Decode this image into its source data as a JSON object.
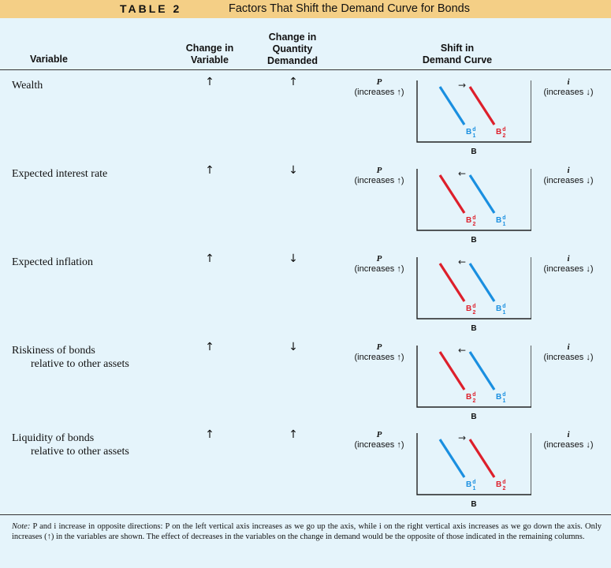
{
  "title": {
    "label": "TABLE 2",
    "text": "Factors That Shift the Demand Curve for Bonds"
  },
  "headers": {
    "variable": "Variable",
    "change_in_variable": [
      "Change in",
      "Variable"
    ],
    "change_in_quantity": [
      "Change in",
      "Quantity",
      "Demanded"
    ],
    "shift": [
      "Shift in",
      "Demand Curve"
    ]
  },
  "axis": {
    "left_symbol": "P",
    "left_text": "(increases ↑)",
    "right_symbol": "i",
    "right_text": "(increases ↓)",
    "x_label": "B"
  },
  "colors": {
    "b1": "#1a8fe0",
    "b2": "#dd1f2b",
    "title_bg": "#f4cf86",
    "page_bg": "#e5f4fb"
  },
  "rows": [
    {
      "variable": [
        "Wealth"
      ],
      "change_variable": "↑",
      "change_quantity": "↑",
      "shift_arrow": "→",
      "shift": "right"
    },
    {
      "variable": [
        "Expected interest rate"
      ],
      "change_variable": "↑",
      "change_quantity": "↓",
      "shift_arrow": "←",
      "shift": "left"
    },
    {
      "variable": [
        "Expected inflation"
      ],
      "change_variable": "↑",
      "change_quantity": "↓",
      "shift_arrow": "←",
      "shift": "left"
    },
    {
      "variable": [
        "Riskiness of bonds",
        "relative to other assets"
      ],
      "change_variable": "↑",
      "change_quantity": "↓",
      "shift_arrow": "←",
      "shift": "left"
    },
    {
      "variable": [
        "Liquidity of bonds",
        "relative to other assets"
      ],
      "change_variable": "↑",
      "change_quantity": "↑",
      "shift_arrow": "→",
      "shift": "right"
    }
  ],
  "curve_labels": {
    "b1": "B",
    "b1_sup": "d",
    "b1_sub": "1",
    "b2": "B",
    "b2_sup": "d",
    "b2_sub": "2"
  },
  "note": {
    "label": "Note:",
    "text": "P and i increase in opposite directions: P on the left vertical axis increases as we go up the axis, while i on the right vertical axis increases as we go down the axis. Only increases (↑) in the variables are shown. The effect of decreases in the variables on the change in demand would be the opposite of those indicated in the remaining columns."
  }
}
